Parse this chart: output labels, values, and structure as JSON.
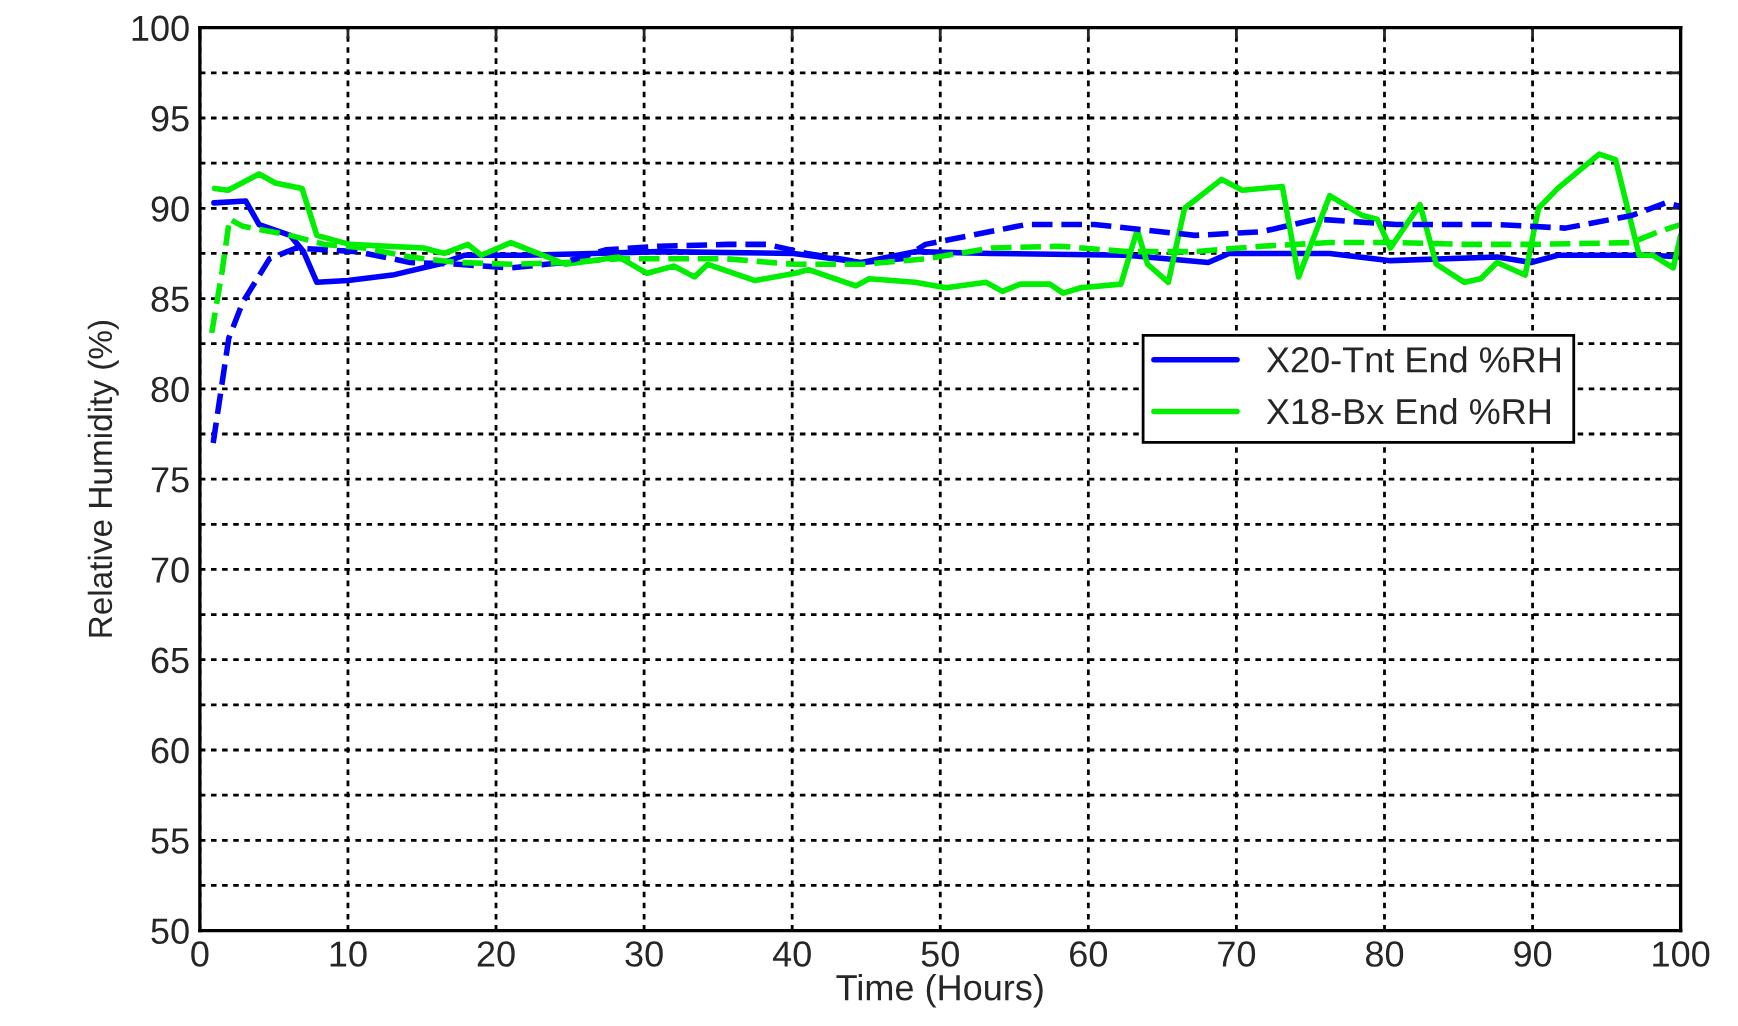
{
  "chart_data": {
    "type": "line",
    "xlabel": "Time (Hours)",
    "ylabel": "Relative Humidity (%)",
    "xlim": [
      0,
      100
    ],
    "xticks": [
      0,
      10,
      20,
      30,
      40,
      50,
      60,
      70,
      80,
      90,
      100
    ],
    "ylim": [
      50,
      100
    ],
    "yticks": [
      50,
      {
        "value": 52.5,
        "label": null
      },
      55,
      {
        "value": 57.5,
        "label": null
      },
      60,
      {
        "value": 62.5,
        "label": null
      },
      65,
      {
        "value": 67.5,
        "label": null
      },
      70,
      {
        "value": 72.5,
        "label": null
      },
      75,
      {
        "value": 77.5,
        "label": null
      },
      80,
      {
        "value": 82.5,
        "label": null
      },
      85,
      {
        "value": 87.5,
        "label": null
      },
      90,
      {
        "value": 92.5,
        "label": null
      },
      95,
      {
        "value": 97.5,
        "label": null
      },
      100
    ],
    "grid": true,
    "legend": "right",
    "marker": "none",
    "series": [
      {
        "name": "X20-Tnt End %RH",
        "color": "#0000ff",
        "line_style": "solid",
        "x": [
          0.95,
          3.1,
          4.0,
          6.1,
          7.0,
          7.9,
          10,
          13,
          16.1,
          17.9,
          22,
          26.5,
          31,
          40.1,
          44.7,
          48.3,
          53.5,
          62.6,
          68.1,
          69.5,
          76.3,
          80.4,
          87.6,
          89.9,
          91.7,
          98.1,
          100
        ],
        "values": [
          90.3,
          90.4,
          89.1,
          88.5,
          87.6,
          85.9,
          86.0,
          86.3,
          86.9,
          87.4,
          87.4,
          87.5,
          87.6,
          87.5,
          87.0,
          87.6,
          87.5,
          87.4,
          87.0,
          87.5,
          87.5,
          87.1,
          87.3,
          87.0,
          87.4,
          87.4,
          87.3
        ]
      },
      {
        "name": "X18-Bx End %RH",
        "color": "#00ee00",
        "line_style": "solid",
        "x": [
          1.0,
          1.9,
          4.0,
          5.1,
          6.9,
          7.9,
          10.1,
          15.1,
          16.5,
          18.1,
          19,
          21,
          24.7,
          28.3,
          30.2,
          32,
          33.4,
          34.3,
          37.5,
          40.2,
          41.1,
          44.3,
          45.2,
          48.3,
          50.4,
          53.1,
          54.2,
          55.4,
          57.4,
          58.3,
          59.5,
          62.2,
          63.3,
          64,
          65.4,
          66.5,
          69,
          70.4,
          73.1,
          74.2,
          76.3,
          78.5,
          79.5,
          80.4,
          82.4,
          83.5,
          85.4,
          86.5,
          87.6,
          89.5,
          90.4,
          91.7,
          94.5,
          95.6,
          97.2,
          98.1,
          99.5,
          100
        ],
        "values": [
          91.1,
          91.0,
          91.9,
          91.4,
          91.1,
          88.5,
          88.0,
          87.8,
          87.5,
          88.0,
          87.4,
          88.1,
          86.9,
          87.3,
          86.4,
          86.8,
          86.2,
          86.9,
          86.0,
          86.4,
          86.6,
          85.7,
          86.1,
          85.9,
          85.6,
          85.9,
          85.4,
          85.8,
          85.8,
          85.3,
          85.6,
          85.8,
          88.8,
          86.9,
          85.9,
          90.0,
          91.6,
          91.0,
          91.2,
          86.2,
          90.7,
          89.6,
          89.4,
          87.8,
          90.2,
          86.9,
          85.9,
          86.1,
          87.0,
          86.3,
          90.0,
          91.1,
          93.0,
          92.7,
          87.4,
          87.4,
          86.7,
          88.5
        ]
      },
      {
        "color": "#0000ff",
        "line_style": "dashed",
        "x": [
          0.9,
          1.95,
          2.9,
          4.7,
          6.5,
          10.6,
          14.2,
          17.4,
          21,
          24.6,
          27.4,
          31,
          35.6,
          38.3,
          41,
          44.7,
          47.4,
          49,
          55.8,
          60.4,
          67.2,
          71.7,
          75.4,
          80.8,
          87.6,
          92.2,
          96.7,
          99,
          100
        ],
        "values": [
          77.0,
          82.8,
          84.8,
          87.2,
          87.8,
          87.6,
          87.0,
          86.9,
          86.7,
          87.0,
          87.7,
          87.9,
          88.0,
          88.0,
          87.5,
          87.0,
          87.2,
          88.0,
          89.1,
          89.1,
          88.5,
          88.7,
          89.4,
          89.1,
          89.1,
          88.9,
          89.6,
          90.3,
          90.1
        ]
      },
      {
        "color": "#00ee00",
        "line_style": "dashed",
        "x": [
          0.8,
          1.5,
          2.0,
          2.9,
          6.1,
          8.4,
          11.1,
          14.2,
          17.4,
          21,
          24.7,
          28.3,
          32,
          35.6,
          40.1,
          44.7,
          49,
          53.5,
          58.1,
          62.6,
          67.2,
          71.7,
          76.3,
          80.8,
          85.4,
          89.9,
          96.7,
          98.5,
          100
        ],
        "values": [
          83.1,
          86.5,
          89.4,
          89.0,
          88.5,
          88.0,
          87.8,
          87.3,
          87.0,
          86.9,
          87.0,
          87.2,
          87.2,
          87.2,
          86.9,
          86.9,
          87.2,
          87.8,
          87.9,
          87.6,
          87.6,
          87.9,
          88.1,
          88.1,
          88.0,
          88.0,
          88.1,
          88.7,
          89.1
        ]
      }
    ]
  }
}
